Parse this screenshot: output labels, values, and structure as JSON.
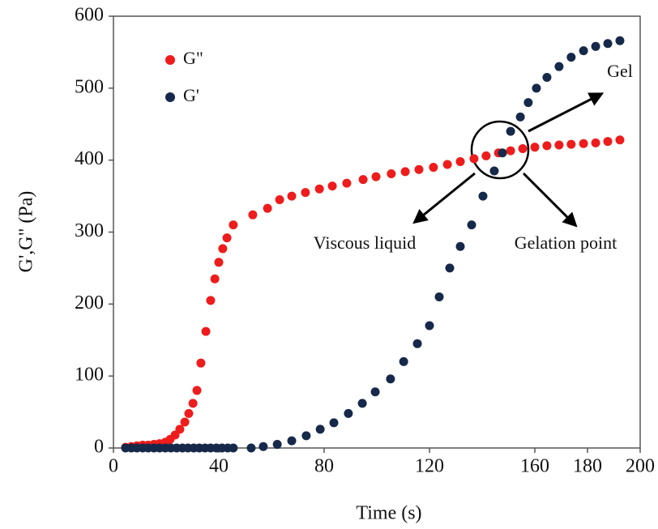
{
  "chart_data": {
    "type": "scatter",
    "x_label": "Time (s)",
    "y_label": "G',G\" (Pa)",
    "xlim": [
      0,
      200
    ],
    "xticks": [
      0,
      40,
      80,
      120,
      160,
      180,
      200
    ],
    "ylim": [
      0,
      600
    ],
    "yticks": [
      0,
      100,
      200,
      300,
      400,
      500,
      600
    ],
    "legend_position": "upper left",
    "annotations": [
      "Gel",
      "Viscous liquid",
      "Gelation point"
    ],
    "series": [
      {
        "name": "G\"",
        "color": "#ee1c1c",
        "x": [
          4.6,
          6.8,
          8.9,
          11.1,
          13.2,
          15.4,
          17.5,
          19.7,
          21.5,
          23.4,
          25.2,
          27.1,
          28.6,
          30.2,
          31.7,
          33.2,
          35.1,
          36.9,
          38.5,
          40.0,
          41.5,
          43.1,
          45.5,
          52.9,
          58.5,
          63.1,
          67.7,
          72.9,
          78.2,
          83.1,
          88.6,
          94.8,
          99.7,
          105.5,
          110.8,
          116.0,
          121.5,
          126.8,
          131.7,
          136.9,
          141.5,
          146.2,
          150.8,
          155.4,
          160.0,
          164.6,
          169.2,
          173.8,
          178.5,
          183.1,
          187.7,
          192.3
        ],
        "values": [
          1,
          2,
          3,
          4,
          4,
          5,
          6,
          8,
          12,
          18,
          26,
          36,
          48,
          62,
          80,
          118,
          162,
          205,
          235,
          258,
          277,
          292,
          310,
          324,
          333,
          345,
          350,
          355,
          360,
          364,
          368,
          373,
          377,
          381,
          384,
          387,
          390,
          394,
          398,
          402,
          406,
          410,
          413,
          416,
          418,
          420,
          421,
          422,
          423,
          424,
          426,
          428
        ]
      },
      {
        "name": "G'",
        "color": "#16294a",
        "x": [
          4.6,
          6.8,
          8.9,
          11.1,
          13.2,
          15.4,
          17.5,
          19.7,
          21.8,
          24.0,
          26.2,
          28.3,
          30.5,
          32.6,
          34.8,
          36.9,
          39.1,
          41.2,
          43.4,
          45.5,
          52.3,
          56.9,
          62.2,
          67.7,
          73.2,
          78.5,
          83.7,
          89.2,
          94.5,
          99.4,
          105.2,
          110.2,
          115.4,
          120.0,
          123.7,
          127.7,
          131.7,
          136.0,
          140.3,
          144.6,
          147.7,
          150.8,
          154.5,
          157.5,
          160.6,
          164.6,
          169.2,
          173.8,
          178.5,
          183.1,
          187.7,
          192.3
        ],
        "values": [
          0,
          0,
          0,
          0,
          0,
          0,
          0,
          0,
          0,
          0,
          0,
          0,
          0,
          0,
          0,
          0,
          0,
          0,
          0,
          0,
          0,
          2,
          5,
          10,
          17,
          26,
          35,
          48,
          62,
          78,
          96,
          120,
          145,
          170,
          210,
          250,
          280,
          310,
          350,
          385,
          410,
          440,
          460,
          480,
          500,
          515,
          530,
          543,
          552,
          558,
          562,
          566
        ]
      }
    ]
  }
}
